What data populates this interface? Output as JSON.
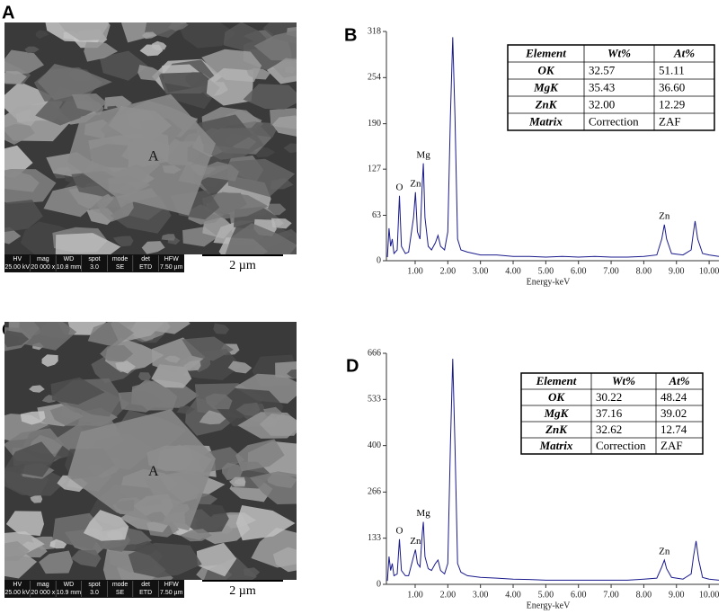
{
  "sem_panels": [
    {
      "letter": "A",
      "site_label": "A",
      "scale_bar": "2 µm",
      "info_headers": [
        "HV",
        "mag",
        "WD",
        "spot",
        "mode",
        "det",
        "HFW"
      ],
      "info_values": [
        "25.00 kV",
        "20 000 x",
        "10.8 mm",
        "3.0",
        "SE",
        "ETD",
        "7.50 µm"
      ]
    },
    {
      "letter": "C",
      "site_label": "A",
      "scale_bar": "2 µm",
      "info_headers": [
        "HV",
        "mag",
        "WD",
        "spot",
        "mode",
        "det",
        "HFW"
      ],
      "info_values": [
        "25.00 kV",
        "20 000 x",
        "10.9 mm",
        "3.0",
        "SE",
        "ETD",
        "7.50 µm"
      ]
    }
  ],
  "chart_data": [
    {
      "type": "line",
      "letter": "B",
      "xlabel": "Energy-keV",
      "xlim": [
        0.12,
        10.3
      ],
      "ylim": [
        0,
        318
      ],
      "yticks": [
        0,
        63,
        127,
        190,
        254,
        318
      ],
      "xticks": [
        {
          "value": 1,
          "label": "1.00"
        },
        {
          "value": 2,
          "label": "2.00"
        },
        {
          "value": 3,
          "label": "3.00"
        },
        {
          "value": 4,
          "label": "4.00"
        },
        {
          "value": 5,
          "label": "5.00"
        },
        {
          "value": 6,
          "label": "6.00"
        },
        {
          "value": 7,
          "label": "7.00"
        },
        {
          "value": 8,
          "label": "8.00"
        },
        {
          "value": 9,
          "label": "9.00"
        },
        {
          "value": 10,
          "label": "10.00"
        }
      ],
      "series": [
        {
          "color": "#1a1a8c",
          "x": [
            0.15,
            0.2,
            0.25,
            0.3,
            0.35,
            0.45,
            0.52,
            0.58,
            0.7,
            0.8,
            0.95,
            1.01,
            1.07,
            1.15,
            1.22,
            1.25,
            1.3,
            1.4,
            1.5,
            1.62,
            1.7,
            1.78,
            1.9,
            2.0,
            2.08,
            2.15,
            2.22,
            2.3,
            2.4,
            2.6,
            3.0,
            3.5,
            4.0,
            4.5,
            5.0,
            5.5,
            6.0,
            6.5,
            7.0,
            7.5,
            8.0,
            8.4,
            8.55,
            8.63,
            8.7,
            8.85,
            9.2,
            9.45,
            9.52,
            9.57,
            9.65,
            9.8,
            10.0,
            10.3
          ],
          "values": [
            5,
            45,
            20,
            30,
            10,
            15,
            90,
            20,
            10,
            12,
            60,
            95,
            40,
            30,
            110,
            135,
            60,
            20,
            15,
            25,
            35,
            20,
            15,
            40,
            200,
            310,
            200,
            30,
            15,
            12,
            8,
            8,
            6,
            6,
            5,
            6,
            5,
            6,
            5,
            5,
            6,
            8,
            30,
            50,
            30,
            10,
            8,
            15,
            40,
            55,
            30,
            10,
            8,
            6
          ]
        }
      ],
      "annotations": [
        {
          "text": "O",
          "x": 0.52
        },
        {
          "text": "Zn",
          "x": 1.01
        },
        {
          "text": "Mg",
          "x": 1.25
        },
        {
          "text": "Zn",
          "x": 8.63
        }
      ],
      "table": {
        "header": [
          "Element",
          "Wt%",
          "At%"
        ],
        "rows": [
          [
            "OK",
            "32.57",
            "51.11"
          ],
          [
            "MgK",
            "35.43",
            "36.60"
          ],
          [
            "ZnK",
            "32.00",
            "12.29"
          ],
          [
            "Matrix",
            "Correction",
            "ZAF"
          ]
        ]
      }
    },
    {
      "type": "line",
      "letter": "D",
      "xlabel": "Energy-keV",
      "xlim": [
        0.12,
        10.3
      ],
      "ylim": [
        0,
        666
      ],
      "yticks": [
        0,
        133,
        266,
        400,
        533,
        666
      ],
      "xticks": [
        {
          "value": 1,
          "label": "1.00"
        },
        {
          "value": 2,
          "label": "2.00"
        },
        {
          "value": 3,
          "label": "3.00"
        },
        {
          "value": 4,
          "label": "4.00"
        },
        {
          "value": 5,
          "label": "5.00"
        },
        {
          "value": 6,
          "label": "6.00"
        },
        {
          "value": 7,
          "label": "7.00"
        },
        {
          "value": 8,
          "label": "8.00"
        },
        {
          "value": 9,
          "label": "9.00"
        },
        {
          "value": 10,
          "label": "10.00"
        }
      ],
      "series": [
        {
          "color": "#1a1a8c",
          "x": [
            0.15,
            0.2,
            0.25,
            0.3,
            0.35,
            0.45,
            0.52,
            0.58,
            0.7,
            0.8,
            0.95,
            1.01,
            1.07,
            1.15,
            1.22,
            1.25,
            1.3,
            1.4,
            1.5,
            1.62,
            1.7,
            1.78,
            1.9,
            2.0,
            2.08,
            2.15,
            2.22,
            2.3,
            2.4,
            2.6,
            3.0,
            3.5,
            4.0,
            4.5,
            5.0,
            5.5,
            6.0,
            6.5,
            7.0,
            7.5,
            8.0,
            8.4,
            8.55,
            8.63,
            8.7,
            8.85,
            9.2,
            9.45,
            9.52,
            9.6,
            9.68,
            9.8,
            10.0,
            10.3
          ],
          "values": [
            10,
            80,
            40,
            60,
            25,
            30,
            130,
            40,
            25,
            25,
            80,
            100,
            60,
            50,
            150,
            180,
            80,
            45,
            40,
            60,
            70,
            40,
            30,
            60,
            400,
            650,
            400,
            60,
            35,
            25,
            20,
            18,
            15,
            14,
            12,
            12,
            12,
            12,
            12,
            12,
            15,
            18,
            50,
            70,
            45,
            20,
            15,
            30,
            80,
            125,
            70,
            20,
            15,
            12
          ]
        }
      ],
      "annotations": [
        {
          "text": "O",
          "x": 0.52
        },
        {
          "text": "Zn",
          "x": 1.01
        },
        {
          "text": "Mg",
          "x": 1.25
        },
        {
          "text": "Zn",
          "x": 8.63
        }
      ],
      "table": {
        "header": [
          "Element",
          "Wt%",
          "At%"
        ],
        "rows": [
          [
            "OK",
            "30.22",
            "48.24"
          ],
          [
            "MgK",
            "37.16",
            "39.02"
          ],
          [
            "ZnK",
            "32.62",
            "12.74"
          ],
          [
            "Matrix",
            "Correction",
            "ZAF"
          ]
        ]
      }
    }
  ]
}
